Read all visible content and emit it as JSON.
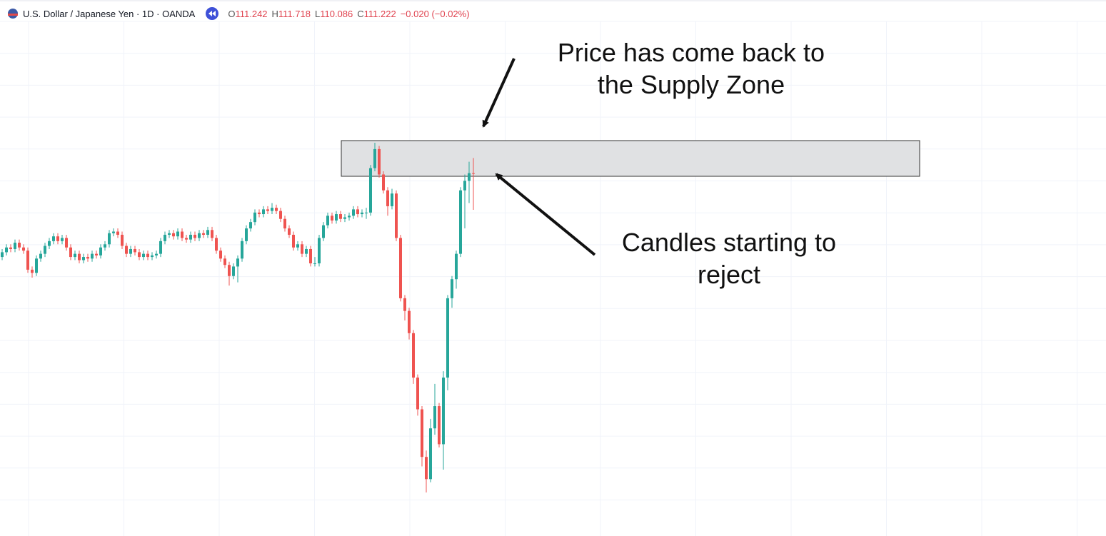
{
  "header": {
    "symbol": "U.S. Dollar / Japanese Yen · 1D · OANDA",
    "ohlc": [
      {
        "label": "O",
        "value": 111.242
      },
      {
        "label": "H",
        "value": 111.718
      },
      {
        "label": "L",
        "value": 110.086
      },
      {
        "label": "C",
        "value": 111.222
      }
    ],
    "change": "−0.020 (−0.02%)"
  },
  "chart_data": {
    "type": "candlestick",
    "up_color": "#26a69a",
    "down_color": "#ef5350",
    "open": [
      108.6,
      108.75,
      108.9,
      108.85,
      109.05,
      108.9,
      108.8,
      108.2,
      108.1,
      108.55,
      108.7,
      108.95,
      109.1,
      109.25,
      109.1,
      109.2,
      108.9,
      108.6,
      108.7,
      108.5,
      108.6,
      108.55,
      108.7,
      108.65,
      108.9,
      109.0,
      109.35,
      109.4,
      109.3,
      108.95,
      108.7,
      108.85,
      108.75,
      108.6,
      108.7,
      108.6,
      108.65,
      108.7,
      109.1,
      109.3,
      109.35,
      109.25,
      109.4,
      109.2,
      109.15,
      109.3,
      109.2,
      109.35,
      109.3,
      109.45,
      109.2,
      108.8,
      108.55,
      108.35,
      108.0,
      108.3,
      108.55,
      109.1,
      109.5,
      109.7,
      110.0,
      109.95,
      110.1,
      110.05,
      110.15,
      110.05,
      109.8,
      109.5,
      109.3,
      108.9,
      109.0,
      108.7,
      108.85,
      108.4,
      108.4,
      109.2,
      109.6,
      109.9,
      109.75,
      109.95,
      109.8,
      109.85,
      109.9,
      110.1,
      109.95,
      110.0,
      110.0,
      111.4,
      112.0,
      111.2,
      110.7,
      110.2,
      110.6,
      109.2,
      107.3,
      106.9,
      106.2,
      104.8,
      103.8,
      102.3,
      101.6,
      103.2,
      103.9,
      102.7,
      104.8,
      107.3,
      107.9,
      108.7,
      110.7,
      111.0,
      111.242
    ],
    "high": [
      108.85,
      109.0,
      109.0,
      109.15,
      109.15,
      109.0,
      108.9,
      108.3,
      108.65,
      108.8,
      109.05,
      109.2,
      109.35,
      109.35,
      109.3,
      109.3,
      109.0,
      108.8,
      108.8,
      108.7,
      108.7,
      108.8,
      108.8,
      109.0,
      109.1,
      109.45,
      109.5,
      109.5,
      109.4,
      109.05,
      108.95,
      108.95,
      108.85,
      108.8,
      108.8,
      108.75,
      108.8,
      109.2,
      109.4,
      109.45,
      109.45,
      109.5,
      109.5,
      109.3,
      109.4,
      109.4,
      109.45,
      109.45,
      109.55,
      109.55,
      109.3,
      108.9,
      108.65,
      108.45,
      108.4,
      108.65,
      109.2,
      109.6,
      109.8,
      110.1,
      110.1,
      110.2,
      110.2,
      110.3,
      110.25,
      110.15,
      109.9,
      109.6,
      109.4,
      109.1,
      109.1,
      108.95,
      108.95,
      108.6,
      109.3,
      109.7,
      110.0,
      110.0,
      110.05,
      110.05,
      109.95,
      110.0,
      110.2,
      110.2,
      110.1,
      110.15,
      111.5,
      112.2,
      112.1,
      111.3,
      110.8,
      110.75,
      110.7,
      109.3,
      107.4,
      107.0,
      106.3,
      104.9,
      103.9,
      102.5,
      103.5,
      104.6,
      104.0,
      105.0,
      107.4,
      108.0,
      108.8,
      110.8,
      111.2,
      111.6,
      111.718
    ],
    "low": [
      108.5,
      108.65,
      108.75,
      108.75,
      108.8,
      108.7,
      108.1,
      107.95,
      108.0,
      108.45,
      108.6,
      108.85,
      109.0,
      109.0,
      109.0,
      108.8,
      108.5,
      108.5,
      108.4,
      108.4,
      108.45,
      108.45,
      108.55,
      108.55,
      108.8,
      108.9,
      109.25,
      109.2,
      108.85,
      108.6,
      108.6,
      108.65,
      108.5,
      108.5,
      108.5,
      108.5,
      108.55,
      108.6,
      109.0,
      109.2,
      109.15,
      109.15,
      109.1,
      109.05,
      109.05,
      109.1,
      109.1,
      109.2,
      109.2,
      109.1,
      108.7,
      108.45,
      108.25,
      107.7,
      107.9,
      107.8,
      108.45,
      109.0,
      109.4,
      109.6,
      109.85,
      109.85,
      109.95,
      109.95,
      109.95,
      109.7,
      109.4,
      109.2,
      108.8,
      108.8,
      108.6,
      108.6,
      108.3,
      108.3,
      108.3,
      109.1,
      109.5,
      109.65,
      109.65,
      109.7,
      109.7,
      109.75,
      109.8,
      109.85,
      109.85,
      109.8,
      109.9,
      111.3,
      111.1,
      110.6,
      109.9,
      110.1,
      109.1,
      107.2,
      106.6,
      106.0,
      104.6,
      103.6,
      102.0,
      101.18,
      101.5,
      103.0,
      102.6,
      101.9,
      104.4,
      107.0,
      107.6,
      108.6,
      109.5,
      110.3,
      110.086
    ],
    "close": [
      108.75,
      108.9,
      108.85,
      109.05,
      108.9,
      108.8,
      108.2,
      108.1,
      108.55,
      108.7,
      108.95,
      109.1,
      109.25,
      109.1,
      109.2,
      108.9,
      108.6,
      108.7,
      108.5,
      108.6,
      108.55,
      108.7,
      108.65,
      108.9,
      109.0,
      109.35,
      109.4,
      109.3,
      108.95,
      108.7,
      108.85,
      108.75,
      108.6,
      108.7,
      108.6,
      108.65,
      108.7,
      109.1,
      109.3,
      109.35,
      109.25,
      109.4,
      109.2,
      109.15,
      109.3,
      109.2,
      109.35,
      109.3,
      109.45,
      109.2,
      108.8,
      108.55,
      108.35,
      108.0,
      108.3,
      108.55,
      109.1,
      109.5,
      109.7,
      110.0,
      109.95,
      110.1,
      110.05,
      110.15,
      110.05,
      109.8,
      109.5,
      109.3,
      108.9,
      109.0,
      108.7,
      108.85,
      108.4,
      108.4,
      109.2,
      109.6,
      109.9,
      109.75,
      109.95,
      109.8,
      109.85,
      109.9,
      110.1,
      109.95,
      110.0,
      110.0,
      111.4,
      112.0,
      111.2,
      110.7,
      110.2,
      110.6,
      109.2,
      107.3,
      106.9,
      106.2,
      104.8,
      103.8,
      102.3,
      101.6,
      103.2,
      103.9,
      102.7,
      104.8,
      107.3,
      107.9,
      108.7,
      110.7,
      111.0,
      111.242,
      111.222
    ],
    "annotations": [
      [
        "Price has come back to",
        "the Supply Zone"
      ],
      [
        "Candles starting to",
        "reject"
      ]
    ]
  }
}
